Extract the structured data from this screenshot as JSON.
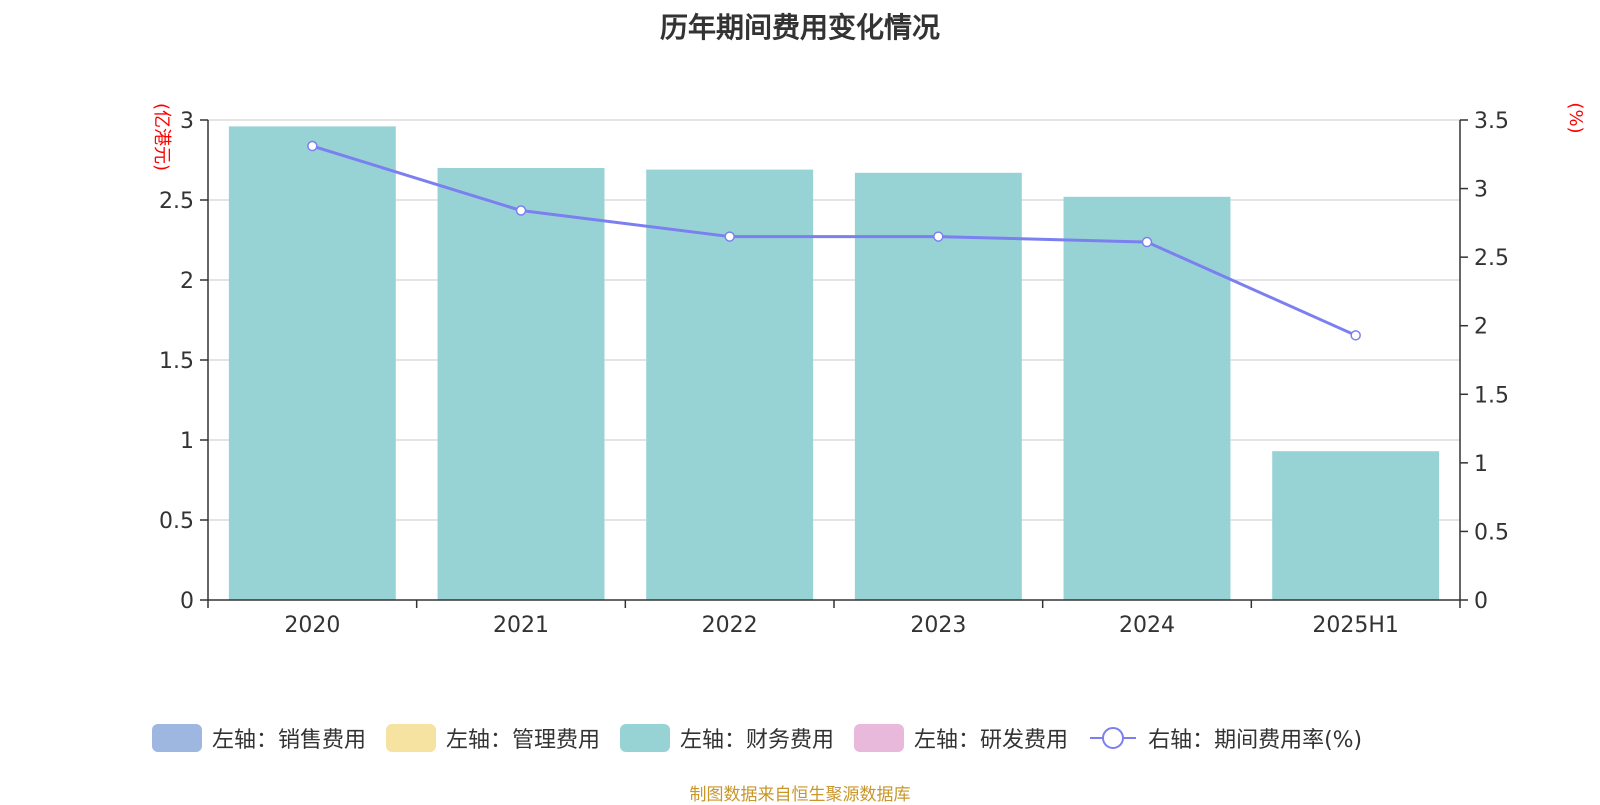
{
  "title": "历年期间费用变化情况",
  "source_note": "制图数据来自恒生聚源数据库",
  "colors": {
    "sales": "#9db7e0",
    "admin": "#f6e3a1",
    "finance": "#97d3d5",
    "rnd": "#e8b9da",
    "ratio_line": "#7b7ff0",
    "axis_unit": "#ff0000",
    "grid": "#c8c8c8",
    "axis": "#333333",
    "source": "#c8962a"
  },
  "legend": [
    {
      "label": "左轴：销售费用",
      "color": "#9db7e0",
      "kind": "bar"
    },
    {
      "label": "左轴：管理费用",
      "color": "#f6e3a1",
      "kind": "bar"
    },
    {
      "label": "左轴：财务费用",
      "color": "#97d3d5",
      "kind": "bar"
    },
    {
      "label": "左轴：研发费用",
      "color": "#e8b9da",
      "kind": "bar"
    },
    {
      "label": "右轴：期间费用率(%)",
      "color": "#7b7ff0",
      "kind": "line"
    }
  ],
  "chart_data": {
    "type": "bar",
    "title": "历年期间费用变化情况",
    "categories": [
      "2020",
      "2021",
      "2022",
      "2023",
      "2024",
      "2025H1"
    ],
    "y_left_unit": "(亿港元)",
    "y_right_unit": "(%)",
    "y_left_lim": [
      0,
      3
    ],
    "y_left_ticks": [
      "0",
      "0.5",
      "1",
      "1.5",
      "2",
      "2.5",
      "3"
    ],
    "y_right_lim": [
      0,
      3.5
    ],
    "y_right_ticks": [
      "0",
      "0.5",
      "1",
      "1.5",
      "2",
      "2.5",
      "3",
      "3.5"
    ],
    "grid": true,
    "legend_position": "bottom",
    "series": [
      {
        "name": "左轴：财务费用",
        "type": "bar",
        "axis": "left",
        "values": [
          2.96,
          2.7,
          2.69,
          2.67,
          2.52,
          0.93
        ]
      },
      {
        "name": "右轴：期间费用率(%)",
        "type": "line",
        "axis": "right",
        "values": [
          3.31,
          2.84,
          2.65,
          2.65,
          2.61,
          1.93
        ]
      }
    ]
  }
}
